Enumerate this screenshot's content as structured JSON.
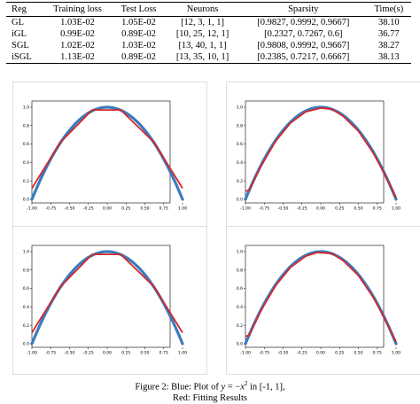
{
  "table": {
    "headers": [
      "Reg",
      "Training loss",
      "Test Loss",
      "Neurons",
      "Sparsity",
      "Time(s)"
    ],
    "rows": [
      [
        "GL",
        "1.03E-02",
        "1.05E-02",
        "[12, 3, 1, 1]",
        "[0.9827, 0.9992, 0.9667]",
        "38.10"
      ],
      [
        "iGL",
        "0.99E-02",
        "0.89E-02",
        "[10, 25, 12, 1]",
        "[0.2327, 0.7267, 0.6]",
        "36.77"
      ],
      [
        "SGL",
        "1.02E-02",
        "1.03E-02",
        "[13, 40, 1, 1]",
        "[0.9808, 0.9992, 0.9667]",
        "38.27"
      ],
      [
        "iSGL",
        "1.13E-02",
        "0.89E-02",
        "[13, 35, 10, 1]",
        "[0.2385, 0.7217, 0.6667]",
        "38.13"
      ]
    ]
  },
  "colors": {
    "target": "#3a7bbf",
    "fit": "#d62728"
  },
  "chart_data": [
    {
      "type": "line",
      "xlim": [
        -1,
        1
      ],
      "ylim": [
        0,
        1
      ],
      "xticks": [
        "-1.00",
        "-0.75",
        "-0.50",
        "-0.25",
        "0.00",
        "0.25",
        "0.50",
        "0.75",
        "1.00"
      ],
      "yticks": [
        "0.0",
        "0.2",
        "0.4",
        "0.6",
        "0.8",
        "1.0"
      ],
      "series": [
        {
          "x": [
            -1,
            -0.75,
            -0.5,
            -0.25,
            0,
            0.25,
            0.5,
            0.75,
            1
          ],
          "y": [
            0,
            0.4375,
            0.75,
            0.9375,
            1,
            0.9375,
            0.75,
            0.4375,
            0
          ]
        },
        {
          "x": [
            -1,
            -0.62,
            -0.2,
            0.18,
            0.62,
            1
          ],
          "y": [
            0.12,
            0.62,
            0.97,
            0.97,
            0.62,
            0.12
          ]
        }
      ]
    },
    {
      "type": "line",
      "xlim": [
        -1,
        1
      ],
      "ylim": [
        0,
        1
      ],
      "xticks": [
        "-1.00",
        "-0.75",
        "-0.50",
        "-0.25",
        "0.00",
        "0.25",
        "0.50",
        "0.75",
        "1.00"
      ],
      "yticks": [
        "0.0",
        "0.2",
        "0.4",
        "0.6",
        "0.8",
        "1.0"
      ],
      "series": [
        {
          "x": [
            -1,
            -0.75,
            -0.5,
            -0.25,
            0,
            0.25,
            0.5,
            0.75,
            1
          ],
          "y": [
            0,
            0.4375,
            0.75,
            0.9375,
            1,
            0.9375,
            0.75,
            0.4375,
            0
          ]
        },
        {
          "x": [
            -1,
            -0.95,
            -0.8,
            -0.6,
            -0.4,
            -0.2,
            0,
            0.15,
            0.3,
            0.5,
            0.7,
            0.85,
            1
          ],
          "y": [
            0.09,
            0.1,
            0.35,
            0.63,
            0.83,
            0.95,
            0.99,
            0.98,
            0.9,
            0.74,
            0.5,
            0.27,
            0.02
          ]
        }
      ]
    },
    {
      "type": "line",
      "xlim": [
        -1,
        1
      ],
      "ylim": [
        0,
        1
      ],
      "xticks": [
        "-1.00",
        "-0.75",
        "-0.50",
        "-0.25",
        "0.00",
        "0.25",
        "0.50",
        "0.75",
        "1.00"
      ],
      "yticks": [
        "0.0",
        "0.2",
        "0.4",
        "0.6",
        "0.8",
        "1.0"
      ],
      "series": [
        {
          "x": [
            -1,
            -0.75,
            -0.5,
            -0.25,
            0,
            0.25,
            0.5,
            0.75,
            1
          ],
          "y": [
            0,
            0.4375,
            0.75,
            0.9375,
            1,
            0.9375,
            0.75,
            0.4375,
            0
          ]
        },
        {
          "x": [
            -1,
            -0.62,
            -0.2,
            0.18,
            0.62,
            1
          ],
          "y": [
            0.12,
            0.62,
            0.97,
            0.97,
            0.62,
            0.12
          ]
        }
      ]
    },
    {
      "type": "line",
      "xlim": [
        -1,
        1
      ],
      "ylim": [
        0,
        1
      ],
      "xticks": [
        "-1.00",
        "-0.75",
        "-0.50",
        "-0.25",
        "0.00",
        "0.25",
        "0.50",
        "0.75",
        "1.00"
      ],
      "yticks": [
        "0.0",
        "0.2",
        "0.4",
        "0.6",
        "0.8",
        "1.0"
      ],
      "series": [
        {
          "x": [
            -1,
            -0.75,
            -0.5,
            -0.25,
            0,
            0.25,
            0.5,
            0.75,
            1
          ],
          "y": [
            0,
            0.4375,
            0.75,
            0.9375,
            1,
            0.9375,
            0.75,
            0.4375,
            0
          ]
        },
        {
          "x": [
            -1,
            -0.95,
            -0.8,
            -0.6,
            -0.4,
            -0.2,
            -0.05,
            0.15,
            0.3,
            0.5,
            0.7,
            0.85,
            1
          ],
          "y": [
            0.08,
            0.09,
            0.35,
            0.63,
            0.83,
            0.95,
            0.99,
            0.98,
            0.9,
            0.74,
            0.5,
            0.27,
            0.02
          ]
        }
      ]
    }
  ],
  "caption": {
    "line1_prefix": "Figure 2: Blue: Plot of ",
    "y_var": "y",
    "equals": " = −",
    "x_var": "x",
    "exp": "2",
    "line1_suffix": " in [-1, 1],",
    "line2": "Red: Fitting Results"
  }
}
